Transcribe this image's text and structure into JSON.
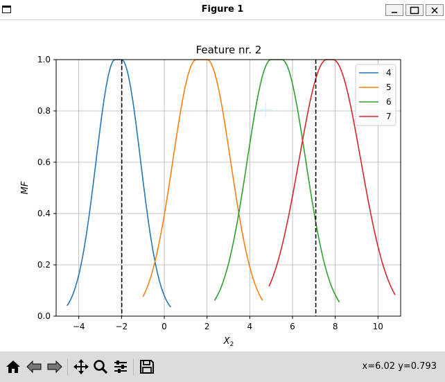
{
  "window": {
    "title": "Figure 1"
  },
  "status": {
    "coords": "x=6.02 y=0.793"
  },
  "toolbar": {
    "buttons": [
      "home-icon",
      "back-icon",
      "forward-icon",
      "pan-icon",
      "zoom-icon",
      "configure-subplots-icon",
      "save-icon"
    ]
  },
  "chart_data": {
    "type": "line",
    "title": "Feature nr. 2",
    "xlabel_main": "X",
    "xlabel_sub": "2",
    "ylabel": "MF",
    "xlim": [
      -5.06,
      11.06
    ],
    "ylim": [
      0,
      1
    ],
    "xticks": [
      -4,
      -2,
      0,
      2,
      4,
      6,
      8,
      10
    ],
    "xtick_labels": [
      "−4",
      "−2",
      "0",
      "2",
      "4",
      "6",
      "8",
      "10"
    ],
    "yticks": [
      0,
      0.2,
      0.4,
      0.6,
      0.8,
      1.0
    ],
    "ytick_labels": [
      "0.0",
      "0.2",
      "0.4",
      "0.6",
      "0.8",
      "1.0"
    ],
    "grid": true,
    "legend_position": "top-right",
    "series": [
      {
        "name": "4",
        "color": "#1f77b4",
        "x_min": -4.55,
        "x_max": 0.3,
        "a": -2.3,
        "b": -2.0,
        "sigma": 0.89
      },
      {
        "name": "5",
        "color": "#ff7f0e",
        "x_min": -1.0,
        "x_max": 4.6,
        "a": 1.5,
        "b": 2.0,
        "sigma": 1.1
      },
      {
        "name": "6",
        "color": "#2ca02c",
        "x_min": 2.35,
        "x_max": 8.2,
        "a": 5.0,
        "b": 5.5,
        "sigma": 1.12
      },
      {
        "name": "7",
        "color": "#d62728",
        "x_min": 4.9,
        "x_max": 10.8,
        "a": 7.6,
        "b": 7.9,
        "sigma": 1.3
      }
    ],
    "vlines": [
      {
        "x": -1.99,
        "color": "#000000",
        "style": "dashed"
      },
      {
        "x": 7.09,
        "color": "#000000",
        "style": "dashed"
      }
    ]
  }
}
